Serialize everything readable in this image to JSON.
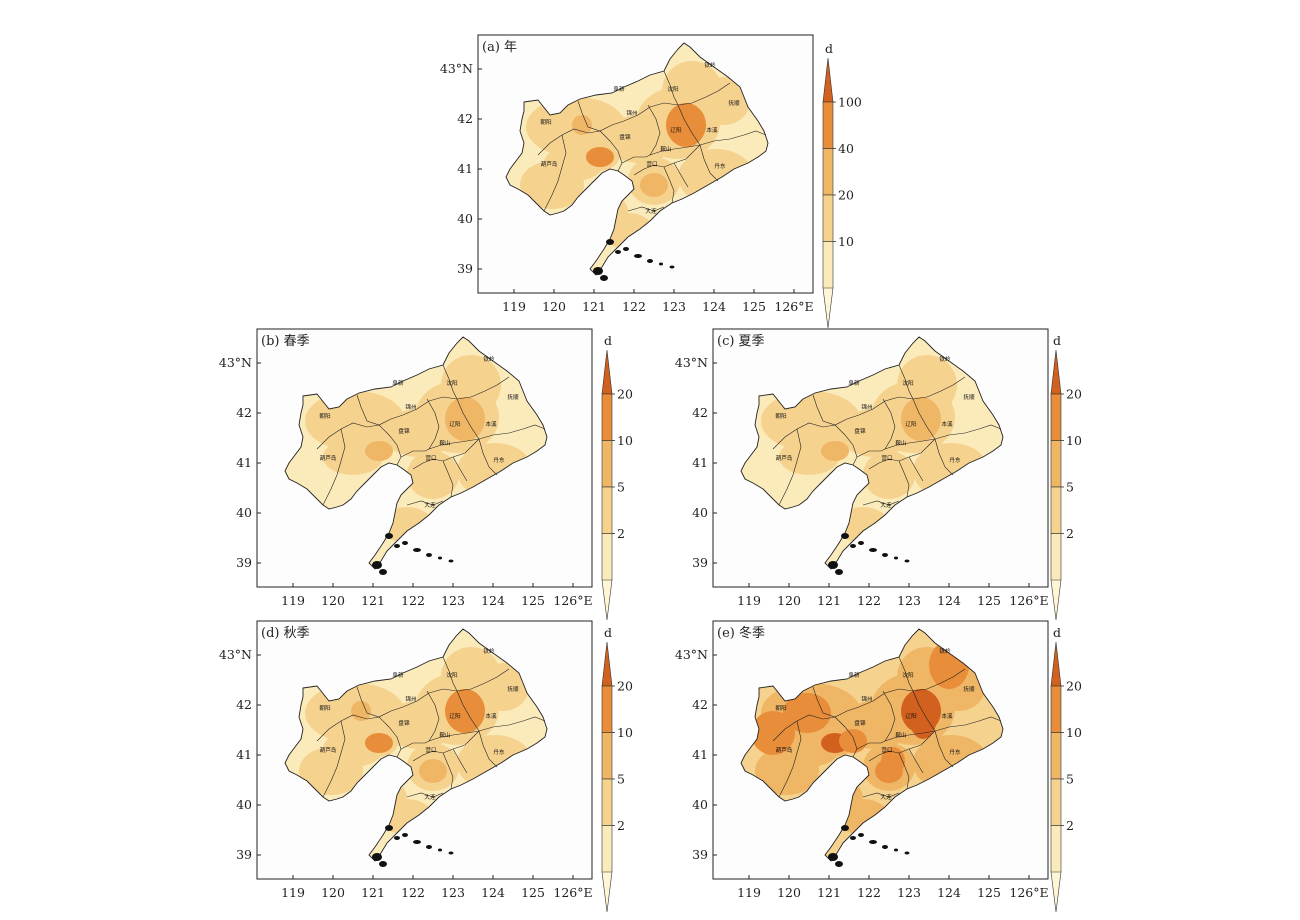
{
  "colors": {
    "c1": "#fbeaba",
    "c2": "#f6d28f",
    "c3": "#efb666",
    "c4": "#e88d39",
    "c5": "#d2601f",
    "sea": "#ffffff",
    "border": "#222222"
  },
  "cities": [
    "铁岭",
    "阜新",
    "沈阳",
    "抚顺",
    "锦州",
    "朝阳",
    "辽阳",
    "本溪",
    "盘锦",
    "鞍山",
    "葫芦岛",
    "营口",
    "丹东",
    "大连"
  ],
  "x_ticks": [
    "119",
    "120",
    "121",
    "122",
    "123",
    "124",
    "125",
    "126°E"
  ],
  "y_ticks": [
    "43°N",
    "42",
    "41",
    "40",
    "39"
  ],
  "colorbar_unit": "d",
  "panels": [
    {
      "label": "(a) 年",
      "intensity": 2,
      "colorbar_ticks": [
        "100",
        "40",
        "20",
        "10"
      ]
    },
    {
      "label": "(b) 春季",
      "intensity": 1,
      "colorbar_ticks": [
        "20",
        "10",
        "5",
        "2"
      ]
    },
    {
      "label": "(c) 夏季",
      "intensity": 1,
      "colorbar_ticks": [
        "20",
        "10",
        "5",
        "2"
      ]
    },
    {
      "label": "(d) 秋季",
      "intensity": 2,
      "colorbar_ticks": [
        "20",
        "10",
        "5",
        "2"
      ]
    },
    {
      "label": "(e) 冬季",
      "intensity": 3,
      "colorbar_ticks": [
        "20",
        "10",
        "5",
        "2"
      ]
    }
  ]
}
